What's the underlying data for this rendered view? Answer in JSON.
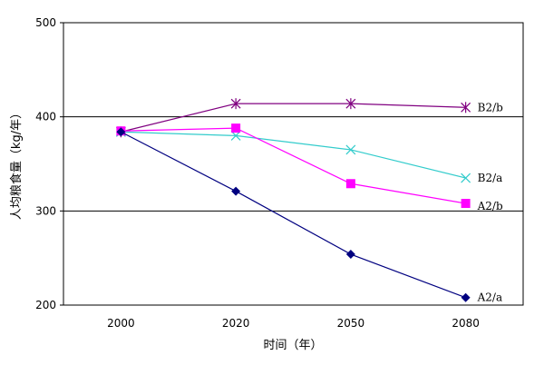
{
  "chart_data": {
    "type": "line",
    "xlabel": "时间（年）",
    "ylabel": "人均粮食量（kg/年）",
    "categories": [
      "2000",
      "2020",
      "2050",
      "2080"
    ],
    "ylim": [
      200,
      500
    ],
    "yticks": [
      200,
      300,
      400,
      500
    ],
    "grid": "horizontal major lines at 300, 400, 500",
    "legend": "none (series labels placed at right end of each line)",
    "series": [
      {
        "name": "B2/b",
        "values": [
          384,
          414,
          414,
          410
        ],
        "color": "#800080",
        "marker": "asterisk"
      },
      {
        "name": "B2/a",
        "values": [
          384,
          380,
          365,
          335
        ],
        "color": "#33cccc",
        "marker": "x"
      },
      {
        "name": "A2/b",
        "values": [
          385,
          388,
          329,
          308
        ],
        "color": "#ff00ff",
        "marker": "square"
      },
      {
        "name": "A2/a",
        "values": [
          384,
          321,
          254,
          208
        ],
        "color": "#000080",
        "marker": "diamond"
      }
    ]
  }
}
